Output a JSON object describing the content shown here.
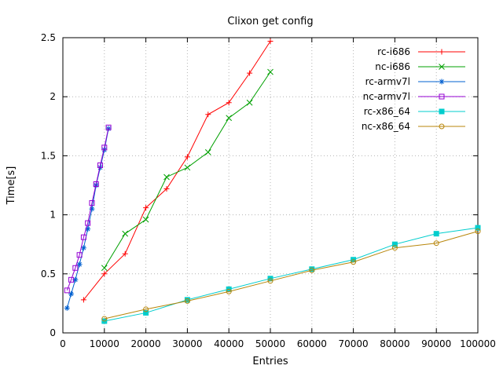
{
  "chart_data": {
    "type": "line",
    "title": "Clixon get config",
    "xlabel": "Entries",
    "ylabel": "Time[s]",
    "xlim": [
      0,
      100000
    ],
    "ylim": [
      0,
      2.5
    ],
    "xticks": [
      0,
      10000,
      20000,
      30000,
      40000,
      50000,
      60000,
      70000,
      80000,
      90000,
      100000
    ],
    "yticks": [
      0,
      0.5,
      1,
      1.5,
      2,
      2.5
    ],
    "grid": true,
    "grid_style": "dotted",
    "legend_position": "top-right-inside",
    "series": [
      {
        "name": "rc-i686",
        "color": "#ff0000",
        "marker": "plus",
        "x": [
          5000,
          10000,
          15000,
          20000,
          25000,
          30000,
          35000,
          40000,
          45000,
          50000
        ],
        "y": [
          0.28,
          0.5,
          0.67,
          1.06,
          1.22,
          1.49,
          1.85,
          1.95,
          2.2,
          2.47
        ]
      },
      {
        "name": "nc-i686",
        "color": "#00a000",
        "marker": "x",
        "x": [
          10000,
          15000,
          20000,
          25000,
          30000,
          35000,
          40000,
          45000,
          50000
        ],
        "y": [
          0.55,
          0.84,
          0.96,
          1.32,
          1.4,
          1.53,
          1.82,
          1.95,
          2.21
        ]
      },
      {
        "name": "rc-armv7l",
        "color": "#0060d0",
        "marker": "asterisk",
        "x": [
          1000,
          2000,
          3000,
          4000,
          5000,
          6000,
          7000,
          8000,
          9000,
          10000,
          11000
        ],
        "y": [
          0.21,
          0.33,
          0.45,
          0.58,
          0.72,
          0.88,
          1.05,
          1.25,
          1.4,
          1.55,
          1.73
        ]
      },
      {
        "name": "nc-armv7l",
        "color": "#9400d3",
        "marker": "square-open",
        "x": [
          1000,
          2000,
          3000,
          4000,
          5000,
          6000,
          7000,
          8000,
          9000,
          10000,
          11000
        ],
        "y": [
          0.36,
          0.45,
          0.55,
          0.66,
          0.81,
          0.93,
          1.1,
          1.26,
          1.42,
          1.57,
          1.74
        ]
      },
      {
        "name": "rc-x86_64",
        "color": "#00cdcd",
        "marker": "square-filled",
        "x": [
          10000,
          20000,
          30000,
          40000,
          50000,
          60000,
          70000,
          80000,
          90000,
          100000
        ],
        "y": [
          0.1,
          0.17,
          0.28,
          0.37,
          0.46,
          0.54,
          0.62,
          0.75,
          0.84,
          0.89
        ]
      },
      {
        "name": "nc-x86_64",
        "color": "#b8860b",
        "marker": "circle-open",
        "x": [
          10000,
          20000,
          30000,
          40000,
          50000,
          60000,
          70000,
          80000,
          90000,
          100000
        ],
        "y": [
          0.12,
          0.2,
          0.27,
          0.35,
          0.44,
          0.53,
          0.6,
          0.72,
          0.76,
          0.86
        ]
      }
    ]
  }
}
